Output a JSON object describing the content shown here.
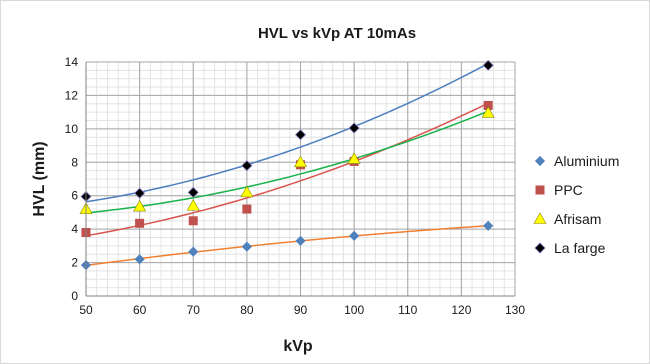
{
  "chart_data": {
    "type": "scatter",
    "title": "HVL vs kVp AT 10mAs",
    "xlabel": "kVp",
    "ylabel": "HVL (mm)",
    "xlim": [
      50,
      130
    ],
    "ylim": [
      0,
      14
    ],
    "x_ticks": [
      50,
      60,
      70,
      80,
      90,
      100,
      110,
      120,
      130
    ],
    "y_ticks": [
      0,
      2,
      4,
      6,
      8,
      10,
      12,
      14
    ],
    "grid": true,
    "minor_grid": true,
    "legend_position": "right",
    "x": [
      50,
      60,
      70,
      80,
      90,
      100,
      125
    ],
    "series": [
      {
        "name": "Aluminium",
        "marker": "diamond",
        "color": "#4f81bd",
        "trend_color": "#f08030",
        "values": [
          1.85,
          2.2,
          2.65,
          2.95,
          3.3,
          3.6,
          4.2
        ]
      },
      {
        "name": "PPC",
        "marker": "square",
        "color": "#c0504d",
        "trend_color": "#d9534f",
        "values": [
          3.8,
          4.35,
          4.5,
          5.2,
          7.85,
          8.05,
          11.4
        ]
      },
      {
        "name": "Afrisam",
        "marker": "triangle",
        "color": "#ffff00",
        "trend_color": "#19b24b",
        "values": [
          5.2,
          5.35,
          5.4,
          6.2,
          8.0,
          8.2,
          10.95
        ]
      },
      {
        "name": "La farge",
        "marker": "diamond",
        "color": "#000000",
        "trend_color": "#4a7ebf",
        "values": [
          5.95,
          6.15,
          6.2,
          7.8,
          9.65,
          10.05,
          13.8
        ]
      }
    ]
  }
}
